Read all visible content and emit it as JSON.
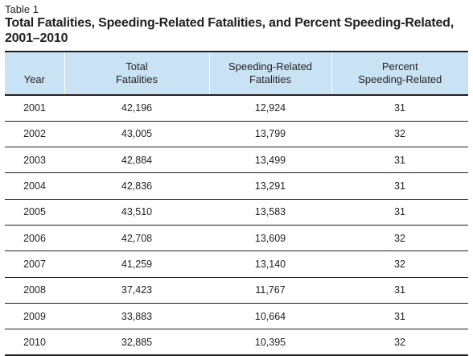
{
  "table": {
    "label": "Table 1",
    "title_line1": "Total Fatalities, Speeding-Related Fatalities, and Percent Speeding-Related,",
    "title_line2": "2001–2010",
    "headers": {
      "year": "Year",
      "total_line1": "Total",
      "total_line2": "Fatalities",
      "speeding_line1": "Speeding-Related",
      "speeding_line2": "Fatalities",
      "percent_line1": "Percent",
      "percent_line2": "Speeding-Related"
    },
    "header_bg": "#c9e2f4",
    "rows": [
      {
        "year": "2001",
        "total": "42,196",
        "speeding": "12,924",
        "percent": "31"
      },
      {
        "year": "2002",
        "total": "43,005",
        "speeding": "13,799",
        "percent": "32"
      },
      {
        "year": "2003",
        "total": "42,884",
        "speeding": "13,499",
        "percent": "31"
      },
      {
        "year": "2004",
        "total": "42,836",
        "speeding": "13,291",
        "percent": "31"
      },
      {
        "year": "2005",
        "total": "43,510",
        "speeding": "13,583",
        "percent": "31"
      },
      {
        "year": "2006",
        "total": "42,708",
        "speeding": "13,609",
        "percent": "32"
      },
      {
        "year": "2007",
        "total": "41,259",
        "speeding": "13,140",
        "percent": "32"
      },
      {
        "year": "2008",
        "total": "37,423",
        "speeding": "11,767",
        "percent": "31"
      },
      {
        "year": "2009",
        "total": "33,883",
        "speeding": "10,664",
        "percent": "31"
      },
      {
        "year": "2010",
        "total": "32,885",
        "speeding": "10,395",
        "percent": "32"
      }
    ]
  }
}
